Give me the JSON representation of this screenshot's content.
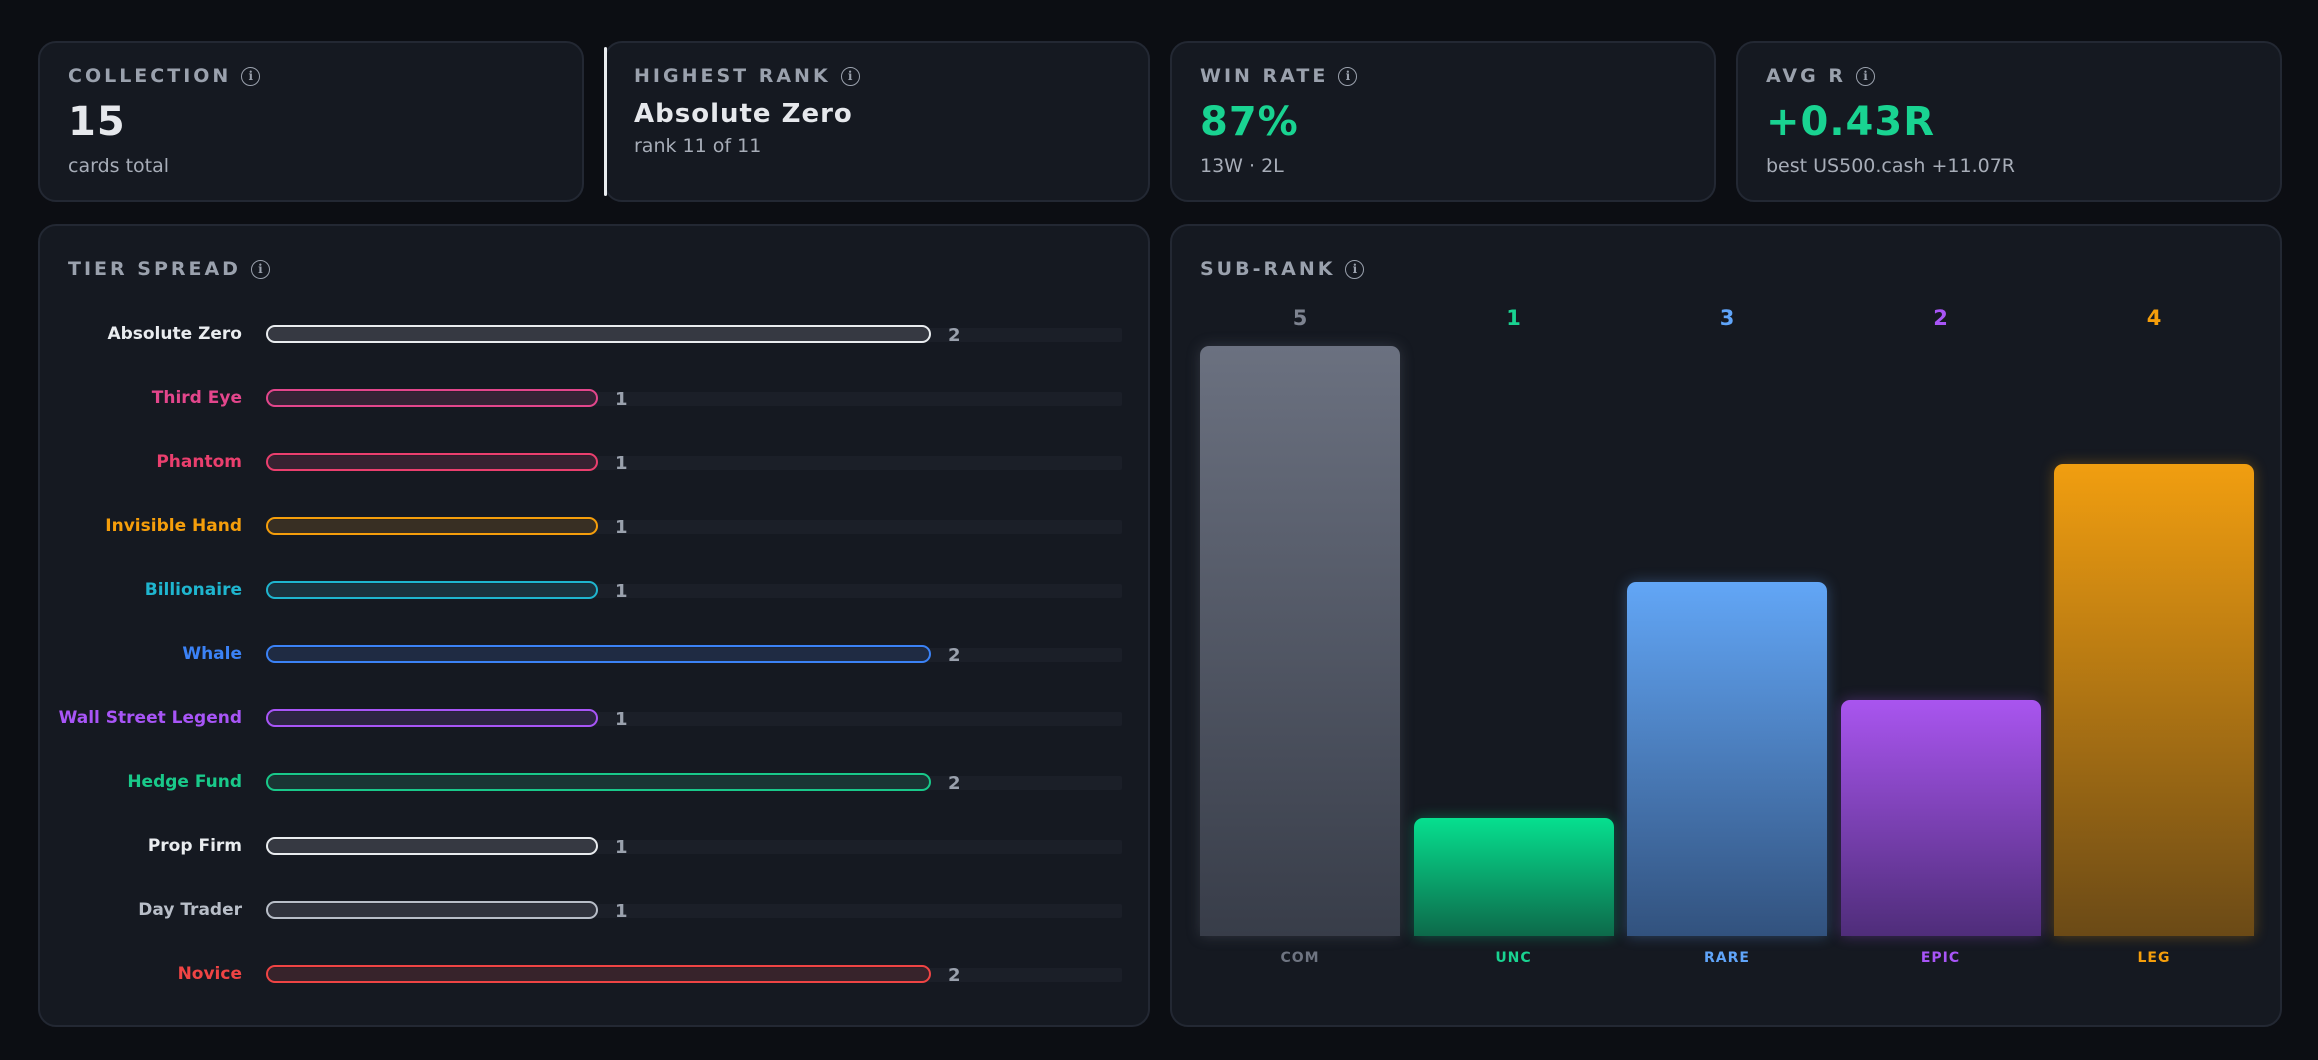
{
  "stats": {
    "collection": {
      "label": "COLLECTION",
      "value": "15",
      "sub": "cards total"
    },
    "highest_rank": {
      "label": "HIGHEST RANK",
      "value": "Absolute Zero",
      "sub": "rank 11 of 11"
    },
    "win_rate": {
      "label": "WIN RATE",
      "value": "87%",
      "sub": "13W · 2L",
      "color": "#19d391"
    },
    "avg_r": {
      "label": "AVG R",
      "value": "+0.43R",
      "sub": "best US500.cash +11.07R",
      "color": "#19d391"
    }
  },
  "tier_spread": {
    "label": "TIER SPREAD",
    "max": 2,
    "tiers": [
      {
        "name": "Absolute Zero",
        "count": 2,
        "color": "#e9ecef"
      },
      {
        "name": "Third Eye",
        "count": 1,
        "color": "#e3468c"
      },
      {
        "name": "Phantom",
        "count": 1,
        "color": "#ea3f6e"
      },
      {
        "name": "Invisible Hand",
        "count": 1,
        "color": "#f59e0b"
      },
      {
        "name": "Billionaire",
        "count": 1,
        "color": "#1fb5cf"
      },
      {
        "name": "Whale",
        "count": 2,
        "color": "#3b82f6"
      },
      {
        "name": "Wall Street Legend",
        "count": 1,
        "color": "#a855f7"
      },
      {
        "name": "Hedge Fund",
        "count": 2,
        "color": "#19c98a"
      },
      {
        "name": "Prop Firm",
        "count": 1,
        "color": "#e9ecef"
      },
      {
        "name": "Day Trader",
        "count": 1,
        "color": "#b8bec8"
      },
      {
        "name": "Novice",
        "count": 2,
        "color": "#ef4444"
      }
    ]
  },
  "sub_rank": {
    "label": "SUB-RANK",
    "chart_data": {
      "type": "bar",
      "categories": [
        "COM",
        "UNC",
        "RARE",
        "EPIC",
        "LEG"
      ],
      "values": [
        5,
        1,
        3,
        2,
        4
      ],
      "colors": [
        "#9aa1ad",
        "#19d391",
        "#60a5fa",
        "#a855f7",
        "#f59e0b"
      ],
      "bar_fill_top": [
        "#6b7180",
        "#06e08f",
        "#62a6f6",
        "#a955ef",
        "#f19e10"
      ],
      "bar_fill_bottom": [
        "#383d49",
        "#0d6a4a",
        "#32527e",
        "#4f2d7a",
        "#6b4a16"
      ]
    }
  },
  "icons": {
    "info": "info-icon"
  }
}
